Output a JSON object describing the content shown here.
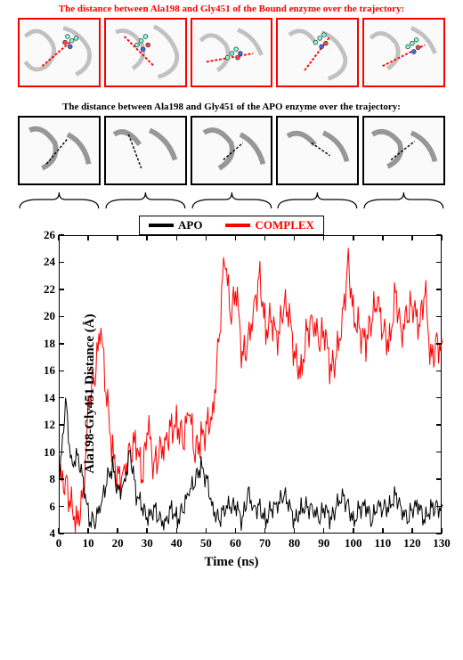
{
  "titles": {
    "bound": "The distance between Ala198 and Gly451 of the Bound enzyme over the trajectory:",
    "apo": "The distance between Ala198 and Gly451 of the APO enzyme over the trajectory:"
  },
  "legend": {
    "apo_label": "APO",
    "complex_label": "COMPLEX",
    "apo_color": "#000000",
    "complex_color": "#ff0000"
  },
  "chart": {
    "type": "line",
    "xlabel": "Time (ns)",
    "ylabel": "Ala198-Gly451 Distance (Å)",
    "xlim": [
      0,
      130
    ],
    "ylim": [
      4,
      26
    ],
    "xtick_step": 10,
    "ytick_step": 2,
    "xticks": [
      0,
      10,
      20,
      30,
      40,
      50,
      60,
      70,
      80,
      90,
      100,
      110,
      120,
      130
    ],
    "yticks": [
      4,
      6,
      8,
      10,
      12,
      14,
      16,
      18,
      20,
      22,
      24,
      26
    ],
    "background_color": "#ffffff",
    "border_color": "#000000",
    "title_fontsize": 11,
    "label_fontsize": 15,
    "tick_fontsize": 13,
    "line_width": 1
  },
  "series": {
    "apo": {
      "color": "#000000",
      "x": [
        0,
        2,
        4,
        6,
        8,
        10,
        12,
        14,
        16,
        18,
        20,
        22,
        24,
        26,
        28,
        30,
        32,
        34,
        36,
        38,
        40,
        42,
        44,
        46,
        48,
        50,
        52,
        54,
        56,
        58,
        60,
        62,
        64,
        66,
        68,
        70,
        72,
        74,
        76,
        78,
        80,
        82,
        84,
        86,
        88,
        90,
        92,
        94,
        96,
        98,
        100,
        102,
        104,
        106,
        108,
        110,
        112,
        114,
        116,
        118,
        120,
        122,
        124,
        126,
        128,
        130
      ],
      "y": [
        8,
        14,
        9,
        10,
        8,
        5,
        5,
        6,
        8,
        9,
        7,
        8,
        10,
        7,
        6,
        5,
        6,
        5,
        5,
        6,
        5,
        6,
        7,
        8,
        9,
        8,
        6,
        5,
        6,
        6,
        6,
        5,
        7,
        6,
        6,
        5,
        6,
        6,
        7,
        6,
        5,
        6,
        6,
        6,
        5,
        6,
        5,
        6,
        7,
        6,
        5,
        6,
        6,
        5,
        6,
        6,
        6,
        7,
        6,
        5,
        6,
        6,
        5,
        6,
        6,
        6
      ]
    },
    "complex": {
      "color": "#ff0000",
      "x": [
        0,
        2,
        4,
        6,
        8,
        10,
        12,
        14,
        16,
        18,
        20,
        22,
        24,
        26,
        28,
        30,
        32,
        34,
        36,
        38,
        40,
        42,
        44,
        46,
        48,
        50,
        52,
        54,
        56,
        58,
        60,
        62,
        64,
        66,
        68,
        70,
        72,
        74,
        76,
        78,
        80,
        82,
        84,
        86,
        88,
        90,
        92,
        94,
        96,
        98,
        100,
        102,
        104,
        106,
        108,
        110,
        112,
        114,
        116,
        118,
        120,
        122,
        124,
        126,
        128,
        130
      ],
      "y": [
        8,
        8,
        6,
        5,
        7,
        14,
        16,
        19,
        14,
        10,
        8,
        9,
        10,
        11,
        8,
        12,
        9,
        10,
        11,
        12,
        12,
        11,
        13,
        10,
        11,
        12,
        13,
        18,
        25,
        20,
        22,
        17,
        18,
        21,
        23,
        19,
        20,
        18,
        21,
        20,
        17,
        16,
        19,
        20,
        18,
        19,
        16,
        17,
        20,
        24,
        20,
        19,
        18,
        20,
        21,
        19,
        18,
        22,
        19,
        20,
        21,
        19,
        22,
        17,
        18,
        18
      ]
    }
  },
  "snapshots": {
    "bound_count": 5,
    "apo_count": 5,
    "bound_border_color": "#ff0000",
    "apo_border_color": "#000000",
    "ligand_color": "#7fffd4",
    "dash_color_bound": "#ff0000",
    "dash_color_apo": "#000000"
  }
}
